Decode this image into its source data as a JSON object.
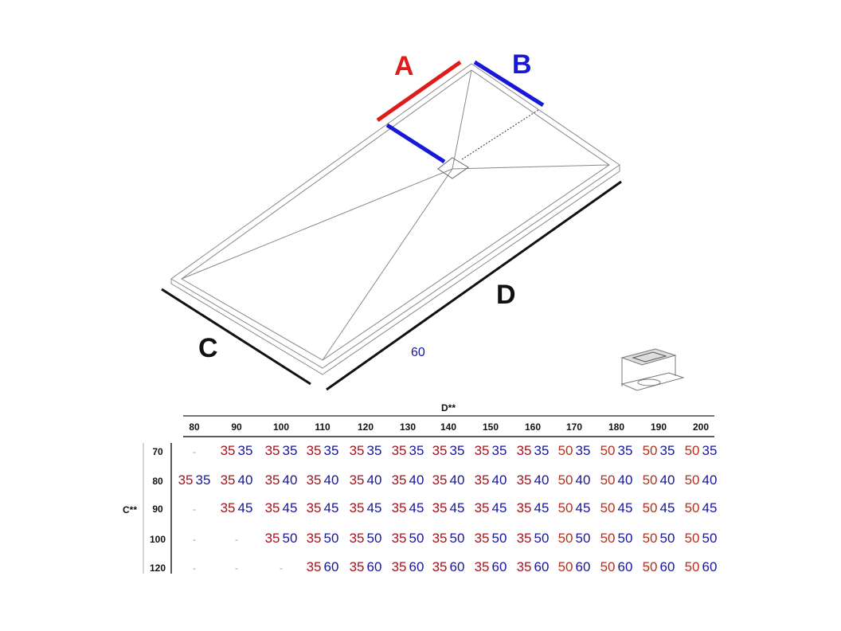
{
  "labels": {
    "A": "A",
    "B": "B",
    "C": "C",
    "D": "D",
    "value_60": "60"
  },
  "colors": {
    "A": "#e01b1b",
    "B": "#1818d8",
    "table_a": "#a3141c",
    "table_b": "#16169a"
  },
  "table": {
    "column_group_label": "D**",
    "row_group_label": "C**",
    "columns": [
      "80",
      "90",
      "100",
      "110",
      "120",
      "130",
      "140",
      "150",
      "160",
      "170",
      "180",
      "190",
      "200"
    ],
    "rows": [
      {
        "label": "70",
        "cells": [
          "-",
          [
            "35",
            "35"
          ],
          [
            "35",
            "35"
          ],
          [
            "35",
            "35"
          ],
          [
            "35",
            "35"
          ],
          [
            "35",
            "35"
          ],
          [
            "35",
            "35"
          ],
          [
            "35",
            "35"
          ],
          [
            "35",
            "35"
          ],
          [
            "50",
            "35"
          ],
          [
            "50",
            "35"
          ],
          [
            "50",
            "35"
          ],
          [
            "50",
            "35"
          ]
        ]
      },
      {
        "label": "80",
        "cells": [
          [
            "35",
            "35"
          ],
          [
            "35",
            "40"
          ],
          [
            "35",
            "40"
          ],
          [
            "35",
            "40"
          ],
          [
            "35",
            "40"
          ],
          [
            "35",
            "40"
          ],
          [
            "35",
            "40"
          ],
          [
            "35",
            "40"
          ],
          [
            "35",
            "40"
          ],
          [
            "50",
            "40"
          ],
          [
            "50",
            "40"
          ],
          [
            "50",
            "40"
          ],
          [
            "50",
            "40"
          ]
        ]
      },
      {
        "label": "90",
        "cells": [
          "-",
          [
            "35",
            "45"
          ],
          [
            "35",
            "45"
          ],
          [
            "35",
            "45"
          ],
          [
            "35",
            "45"
          ],
          [
            "35",
            "45"
          ],
          [
            "35",
            "45"
          ],
          [
            "35",
            "45"
          ],
          [
            "35",
            "45"
          ],
          [
            "50",
            "45"
          ],
          [
            "50",
            "45"
          ],
          [
            "50",
            "45"
          ],
          [
            "50",
            "45"
          ]
        ]
      },
      {
        "label": "100",
        "cells": [
          "-",
          "-",
          [
            "35",
            "50"
          ],
          [
            "35",
            "50"
          ],
          [
            "35",
            "50"
          ],
          [
            "35",
            "50"
          ],
          [
            "35",
            "50"
          ],
          [
            "35",
            "50"
          ],
          [
            "35",
            "50"
          ],
          [
            "50",
            "50"
          ],
          [
            "50",
            "50"
          ],
          [
            "50",
            "50"
          ],
          [
            "50",
            "50"
          ]
        ]
      },
      {
        "label": "120",
        "cells": [
          "-",
          "-",
          "-",
          [
            "35",
            "60"
          ],
          [
            "35",
            "60"
          ],
          [
            "35",
            "60"
          ],
          [
            "35",
            "60"
          ],
          [
            "35",
            "60"
          ],
          [
            "35",
            "60"
          ],
          [
            "50",
            "60"
          ],
          [
            "50",
            "60"
          ],
          [
            "50",
            "60"
          ],
          [
            "50",
            "60"
          ]
        ]
      }
    ]
  }
}
